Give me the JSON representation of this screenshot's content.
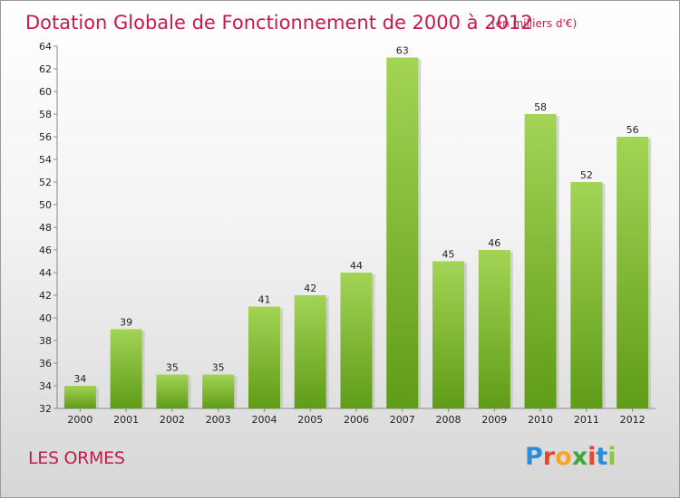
{
  "chart_data": {
    "type": "bar",
    "title": "Dotation Globale de Fonctionnement de 2000 à 2012",
    "subtitle": "(en milliers d'€)",
    "categories": [
      "2000",
      "2001",
      "2002",
      "2003",
      "2004",
      "2005",
      "2006",
      "2007",
      "2008",
      "2009",
      "2010",
      "2011",
      "2012"
    ],
    "values": [
      34,
      39,
      35,
      35,
      41,
      42,
      44,
      63,
      45,
      46,
      58,
      52,
      56
    ],
    "ylim": [
      32,
      64
    ],
    "yticks": [
      32,
      34,
      36,
      38,
      40,
      42,
      44,
      46,
      48,
      50,
      52,
      54,
      56,
      58,
      60,
      62,
      64
    ],
    "grid": false,
    "bar_color": "#7cb82f",
    "title_color": "#c8194b"
  },
  "footer": {
    "commune": "LES ORMES",
    "logo_letters": [
      "P",
      "r",
      "o",
      "x",
      "i",
      "t",
      "i"
    ],
    "logo_colors": [
      "#2e8bd6",
      "#e8462b",
      "#f5a623",
      "#3aa83a",
      "#e8462b",
      "#2e8bd6",
      "#8cc63f"
    ]
  }
}
